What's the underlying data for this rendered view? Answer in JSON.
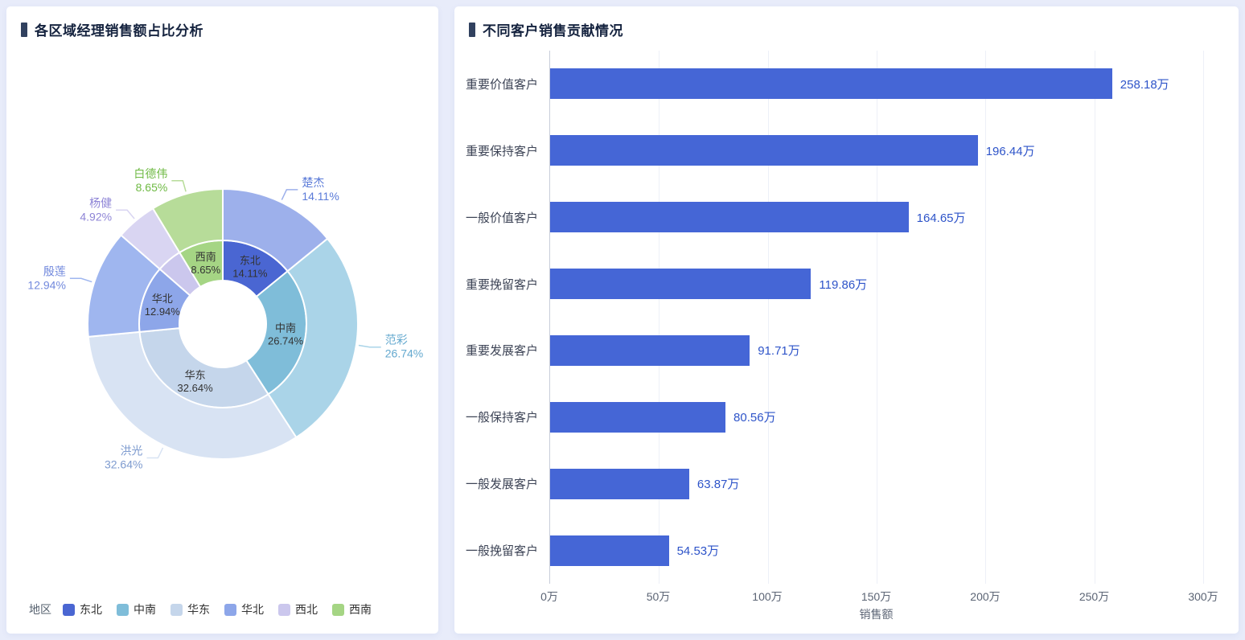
{
  "chart_data": [
    {
      "type": "pie",
      "subtype": "nested-donut",
      "title": "各区域经理销售额占比分析",
      "legend_title": "地区",
      "legend_position": "bottom-left",
      "percent_suffix": "%",
      "inner_ring": [
        {
          "label": "东北",
          "value": 14.11,
          "color": "#4a66d2",
          "label_visible": true
        },
        {
          "label": "中南",
          "value": 26.74,
          "color": "#7fbdd9",
          "label_visible": true
        },
        {
          "label": "华东",
          "value": 32.64,
          "color": "#c5d6eb",
          "label_visible": true
        },
        {
          "label": "华北",
          "value": 12.94,
          "color": "#8da6e9",
          "label_visible": true
        },
        {
          "label": "西北",
          "value": 4.92,
          "color": "#cbc7ed",
          "label_visible": false
        },
        {
          "label": "西南",
          "value": 8.65,
          "color": "#a5d584",
          "label_visible": true
        }
      ],
      "outer_ring": [
        {
          "label": "楚杰",
          "value": 14.11,
          "color": "#9db0eb",
          "text_color": "#5b7bd8"
        },
        {
          "label": "范彩",
          "value": 26.74,
          "color": "#aad4e8",
          "text_color": "#64a9cf"
        },
        {
          "label": "洪光",
          "value": 32.64,
          "color": "#d8e3f3",
          "text_color": "#7e9bcf"
        },
        {
          "label": "殷莲",
          "value": 12.94,
          "color": "#9fb6ef",
          "text_color": "#7289dd"
        },
        {
          "label": "杨健",
          "value": 4.92,
          "color": "#d9d5f2",
          "text_color": "#8e84d6"
        },
        {
          "label": "白德伟",
          "value": 8.65,
          "color": "#b7dc99",
          "text_color": "#6fba44"
        }
      ]
    },
    {
      "type": "bar",
      "orientation": "horizontal",
      "title": "不同客户销售贡献情况",
      "categories": [
        "重要价值客户",
        "重要保持客户",
        "一般价值客户",
        "重要挽留客户",
        "重要发展客户",
        "一般保持客户",
        "一般发展客户",
        "一般挽留客户"
      ],
      "values": [
        258.18,
        196.44,
        164.65,
        119.86,
        91.71,
        80.56,
        63.87,
        54.53
      ],
      "value_labels": [
        "258.18万",
        "196.44万",
        "164.65万",
        "119.86万",
        "91.71万",
        "80.56万",
        "63.87万",
        "54.53万"
      ],
      "x_ticks": [
        "0万",
        "50万",
        "100万",
        "150万",
        "200万",
        "250万",
        "300万"
      ],
      "xlim": [
        0,
        300
      ],
      "xlabel": "销售额",
      "grid": true,
      "bar_color": "#4566d6",
      "value_text_color": "#2e54c9"
    }
  ],
  "theme": {
    "page_bg": "#e8ecfa",
    "card_bg": "#ffffff",
    "header_accent": "#31415f",
    "title_color": "#15233f"
  }
}
